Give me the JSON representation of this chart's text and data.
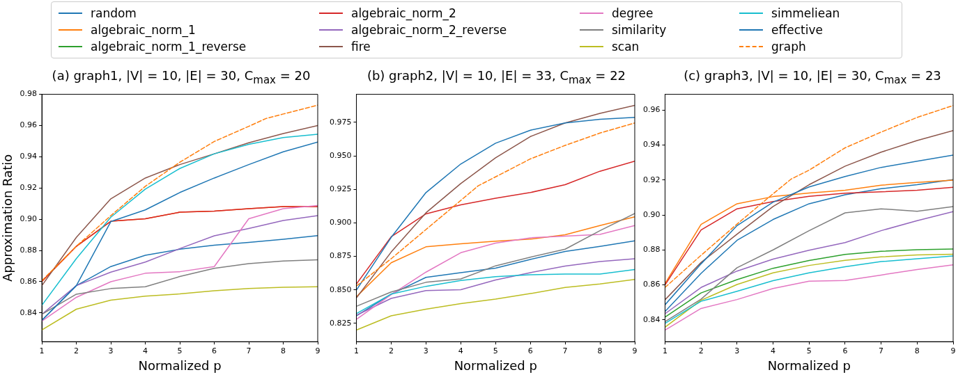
{
  "chart_data": [
    {
      "type": "line",
      "title": "(a) graph1, |V| = 10, |E| = 30, C$_{max}$ = 20",
      "xlabel": "Normalized p",
      "ylabel": "Approximation Ratio",
      "x": [
        1,
        2,
        3,
        4,
        5,
        6,
        7,
        8,
        9
      ],
      "xlim": [
        1,
        9
      ],
      "xticks": [
        1,
        2,
        3,
        4,
        5,
        6,
        7,
        8,
        9
      ],
      "ylim": [
        0.8216,
        0.98
      ],
      "yticks": [
        0.84,
        0.86,
        0.88,
        {
          "value": 0.9,
          "label": "0.90"
        },
        0.92,
        0.94,
        0.96,
        0.98
      ],
      "grid": false,
      "legend": "top",
      "marker": "none",
      "line_style": "solid",
      "series": [
        {
          "name": "random",
          "color": "#1f77b4",
          "values": [
            0.8353,
            0.8575,
            0.8697,
            0.8769,
            0.8808,
            0.8834,
            0.8852,
            0.8872,
            0.8895
          ]
        },
        {
          "name": "algebraic_norm_1",
          "color": "#ff7f0e",
          "values": [
            0.8601,
            0.8827,
            0.8987,
            0.9003,
            0.9045,
            0.9052,
            0.9068,
            0.9081,
            0.9081
          ]
        },
        {
          "name": "algebraic_norm_1_reverse",
          "color": "#2ca02c",
          "values": [
            null,
            null,
            null,
            null,
            null,
            null,
            null,
            null,
            null
          ]
        },
        {
          "name": "algebraic_norm_2",
          "color": "#d62728",
          "values": [
            0.8601,
            0.8827,
            0.8987,
            0.9003,
            0.9045,
            0.9052,
            0.9068,
            0.9081,
            0.9081
          ]
        },
        {
          "name": "algebraic_norm_2_reverse",
          "color": "#9467bd",
          "values": [
            0.8391,
            0.8575,
            0.8661,
            0.8726,
            0.8812,
            0.8894,
            0.8941,
            0.8992,
            0.9023
          ]
        },
        {
          "name": "fire",
          "color": "#8c564b",
          "values": [
            0.8575,
            0.8884,
            0.9131,
            0.9264,
            0.935,
            0.9419,
            0.949,
            0.9549,
            0.96
          ]
        },
        {
          "name": "degree",
          "color": "#e377c2",
          "values": [
            0.8348,
            0.85,
            0.86,
            0.8654,
            0.8664,
            0.8697,
            0.9003,
            0.9068,
            0.9088
          ]
        },
        {
          "name": "similarity",
          "color": "#7f7f7f",
          "values": [
            0.8391,
            0.852,
            0.8556,
            0.8568,
            0.8633,
            0.8686,
            0.8716,
            0.8733,
            0.874
          ]
        },
        {
          "name": "scan",
          "color": "#bcbd22",
          "values": [
            0.8291,
            0.8424,
            0.8482,
            0.8508,
            0.8522,
            0.8542,
            0.8556,
            0.8564,
            0.8568
          ]
        },
        {
          "name": "simmeliean",
          "color": "#17becf",
          "values": [
            0.8449,
            0.8748,
            0.9013,
            0.9193,
            0.9325,
            0.9419,
            0.948,
            0.9523,
            0.9544
          ]
        },
        {
          "name": "effective",
          "color": "#1f77b4",
          "values": [
            0.8353,
            0.8575,
            0.8985,
            0.906,
            0.9171,
            0.9264,
            0.935,
            0.9432,
            0.9494
          ]
        },
        {
          "name": "graph",
          "color": "#ff7f0e",
          "line_style": "dashed",
          "x": [
            1,
            2,
            3,
            4,
            5,
            6,
            7,
            7.5,
            8,
            9
          ],
          "values": [
            0.8607,
            0.8827,
            0.9023,
            0.9211,
            0.9365,
            0.9498,
            0.9595,
            0.9645,
            0.9674,
            0.9731
          ]
        }
      ]
    },
    {
      "type": "line",
      "title": "(b) graph2, |V| = 10, |E| = 33, C$_{max}$ = 22",
      "xlabel": "Normalized p",
      "x": [
        1,
        2,
        3,
        4,
        5,
        6,
        7,
        8,
        9
      ],
      "xlim": [
        1,
        9
      ],
      "xticks": [
        1,
        2,
        3,
        4,
        5,
        6,
        7,
        8,
        9
      ],
      "ylim": [
        0.8113,
        0.9959
      ],
      "yticks": [
        0.825,
        {
          "value": 0.85,
          "label": "0.850"
        },
        0.875,
        {
          "value": 0.9,
          "label": "0.900"
        },
        0.925,
        {
          "value": 0.95,
          "label": "0.950"
        },
        0.975
      ],
      "grid": false,
      "marker": "none",
      "line_style": "solid",
      "series": [
        {
          "color": "#1f77b4",
          "values": [
            0.8305,
            0.8468,
            0.8593,
            0.8628,
            0.8662,
            0.8727,
            0.8786,
            0.8824,
            0.8866
          ]
        },
        {
          "color": "#ff7f0e",
          "values": [
            0.8448,
            0.8702,
            0.8821,
            0.8844,
            0.8863,
            0.8878,
            0.8911,
            0.898,
            0.9045
          ]
        },
        {
          "color": "#2ca02c",
          "values": [
            null,
            null,
            null,
            null,
            null,
            null,
            null,
            null,
            null
          ]
        },
        {
          "color": "#d62728",
          "values": [
            0.8543,
            0.8896,
            0.9067,
            0.9134,
            0.9184,
            0.9226,
            0.9285,
            0.9385,
            0.946
          ]
        },
        {
          "color": "#9467bd",
          "values": [
            0.831,
            0.8436,
            0.8494,
            0.8501,
            0.8573,
            0.8628,
            0.8677,
            0.8711,
            0.8732
          ]
        },
        {
          "color": "#8c564b",
          "values": [
            0.8439,
            0.8782,
            0.9075,
            0.9293,
            0.9485,
            0.9644,
            0.9745,
            0.9817,
            0.9876
          ]
        },
        {
          "color": "#e377c2",
          "values": [
            0.828,
            0.8464,
            0.8632,
            0.8777,
            0.8849,
            0.8888,
            0.89,
            0.8913,
            0.898
          ]
        },
        {
          "color": "#7f7f7f",
          "values": [
            0.8377,
            0.8484,
            0.8556,
            0.8581,
            0.8679,
            0.8744,
            0.8803,
            0.8941,
            0.907
          ]
        },
        {
          "color": "#bcbd22",
          "values": [
            0.82,
            0.8306,
            0.8356,
            0.8397,
            0.8431,
            0.8472,
            0.8518,
            0.8543,
            0.8577
          ]
        },
        {
          "color": "#17becf",
          "values": [
            0.8322,
            0.8468,
            0.8526,
            0.857,
            0.8598,
            0.8612,
            0.8618,
            0.8618,
            0.8652
          ]
        },
        {
          "color": "#1f77b4",
          "values": [
            0.8498,
            0.8891,
            0.9226,
            0.9439,
            0.9594,
            0.9691,
            0.9745,
            0.9773,
            0.9787
          ]
        },
        {
          "color": "#ff7f0e",
          "line_style": "dashed",
          "x": [
            1,
            2,
            3,
            4,
            4.5,
            5,
            6,
            7,
            8,
            9
          ],
          "values": [
            0.8528,
            0.8732,
            0.895,
            0.9167,
            0.9276,
            0.9343,
            0.9477,
            0.9578,
            0.967,
            0.9745
          ]
        }
      ]
    },
    {
      "type": "line",
      "title": "(c) graph3, |V| = 10, |E| = 30, C$_{max}$ = 23",
      "xlabel": "Normalized p",
      "x": [
        1,
        2,
        3,
        4,
        5,
        6,
        7,
        8,
        9
      ],
      "xlim": [
        1,
        9
      ],
      "xticks": [
        1,
        2,
        3,
        4,
        5,
        6,
        7,
        8,
        9
      ],
      "ylim": [
        0.8275,
        0.969
      ],
      "yticks": [
        0.84,
        0.86,
        0.88,
        {
          "value": 0.9,
          "label": "0.90"
        },
        0.92,
        0.94,
        0.96
      ],
      "grid": false,
      "marker": "none",
      "line_style": "solid",
      "series": [
        {
          "color": "#1f77b4",
          "values": [
            0.8448,
            0.8666,
            0.8855,
            0.8974,
            0.9064,
            0.9115,
            0.915,
            0.9173,
            0.9202
          ]
        },
        {
          "color": "#ff7f0e",
          "values": [
            0.8608,
            0.8946,
            0.9064,
            0.9105,
            0.9125,
            0.9141,
            0.917,
            0.9186,
            0.9199
          ]
        },
        {
          "color": "#2ca02c",
          "values": [
            0.8416,
            0.8554,
            0.863,
            0.8695,
            0.8739,
            0.8774,
            0.8792,
            0.8801,
            0.8805
          ]
        },
        {
          "color": "#d62728",
          "values": [
            0.86,
            0.8914,
            0.9035,
            0.9077,
            0.9106,
            0.9124,
            0.9132,
            0.9141,
            0.9158
          ]
        },
        {
          "color": "#9467bd",
          "values": [
            0.8435,
            0.8585,
            0.8679,
            0.8747,
            0.8798,
            0.8842,
            0.891,
            0.8967,
            0.9019
          ]
        },
        {
          "color": "#8c564b",
          "values": [
            0.8515,
            0.8728,
            0.889,
            0.9048,
            0.9173,
            0.9279,
            0.9359,
            0.9426,
            0.9483
          ]
        },
        {
          "color": "#e377c2",
          "values": [
            0.8341,
            0.8465,
            0.8516,
            0.8579,
            0.8621,
            0.8625,
            0.8656,
            0.8688,
            0.8715
          ]
        },
        {
          "color": "#7f7f7f",
          "values": [
            0.839,
            0.8518,
            0.8698,
            0.88,
            0.891,
            0.9012,
            0.9035,
            0.9021,
            0.9048
          ]
        },
        {
          "color": "#bcbd22",
          "values": [
            0.8358,
            0.8512,
            0.8602,
            0.8669,
            0.8711,
            0.874,
            0.876,
            0.8771,
            0.8775
          ]
        },
        {
          "color": "#17becf",
          "values": [
            0.838,
            0.8506,
            0.8563,
            0.8624,
            0.8669,
            0.8704,
            0.8733,
            0.8749,
            0.8765
          ]
        },
        {
          "color": "#1f77b4",
          "values": [
            0.8486,
            0.872,
            0.8939,
            0.9073,
            0.916,
            0.922,
            0.9272,
            0.9307,
            0.9342
          ]
        },
        {
          "color": "#ff7f0e",
          "line_style": "dashed",
          "x": [
            1,
            2,
            3,
            4,
            4.5,
            5,
            6,
            7,
            8,
            9
          ],
          "values": [
            0.8585,
            0.8769,
            0.8948,
            0.9121,
            0.9205,
            0.9256,
            0.9384,
            0.9474,
            0.9558,
            0.9626
          ]
        }
      ]
    }
  ]
}
